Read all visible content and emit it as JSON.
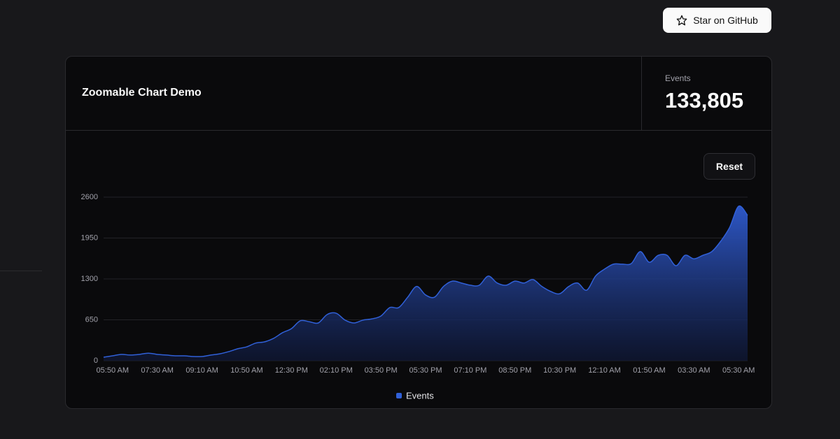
{
  "github_button": {
    "label": "Star on GitHub"
  },
  "card": {
    "title": "Zoomable Chart Demo",
    "stat_label": "Events",
    "stat_value": "133,805",
    "reset_button": "Reset"
  },
  "chart_data": {
    "type": "area",
    "categories": [
      null,
      "05:50 AM",
      null,
      null,
      null,
      null,
      "07:30 AM",
      null,
      null,
      null,
      null,
      "09:10 AM",
      null,
      null,
      null,
      null,
      "10:50 AM",
      null,
      null,
      null,
      null,
      "12:30 PM",
      null,
      null,
      null,
      null,
      "02:10 PM",
      null,
      null,
      null,
      null,
      "03:50 PM",
      null,
      null,
      null,
      null,
      "05:30 PM",
      null,
      null,
      null,
      null,
      "07:10 PM",
      null,
      null,
      null,
      null,
      "08:50 PM",
      null,
      null,
      null,
      null,
      "10:30 PM",
      null,
      null,
      null,
      null,
      "12:10 AM",
      null,
      null,
      null,
      null,
      "01:50 AM",
      null,
      null,
      null,
      null,
      "03:30 AM",
      null,
      null,
      null,
      null,
      "05:30 AM",
      null
    ],
    "series": [
      {
        "name": "Events",
        "color": "#3060d8",
        "values": [
          55,
          78,
          100,
          90,
          100,
          120,
          100,
          90,
          78,
          78,
          67,
          67,
          90,
          110,
          145,
          190,
          220,
          280,
          300,
          355,
          445,
          510,
          635,
          620,
          600,
          735,
          755,
          645,
          600,
          645,
          665,
          710,
          845,
          845,
          1010,
          1180,
          1045,
          1010,
          1180,
          1265,
          1235,
          1200,
          1200,
          1345,
          1235,
          1200,
          1265,
          1235,
          1290,
          1180,
          1100,
          1065,
          1180,
          1235,
          1120,
          1345,
          1455,
          1535,
          1535,
          1545,
          1735,
          1565,
          1675,
          1675,
          1510,
          1675,
          1620,
          1675,
          1735,
          1900,
          2120,
          2455,
          2310
        ]
      }
    ],
    "ylim": [
      0,
      2600
    ],
    "yticks": [
      0,
      650,
      1300,
      1950,
      2600
    ],
    "grid": true,
    "legend": "bottom"
  }
}
